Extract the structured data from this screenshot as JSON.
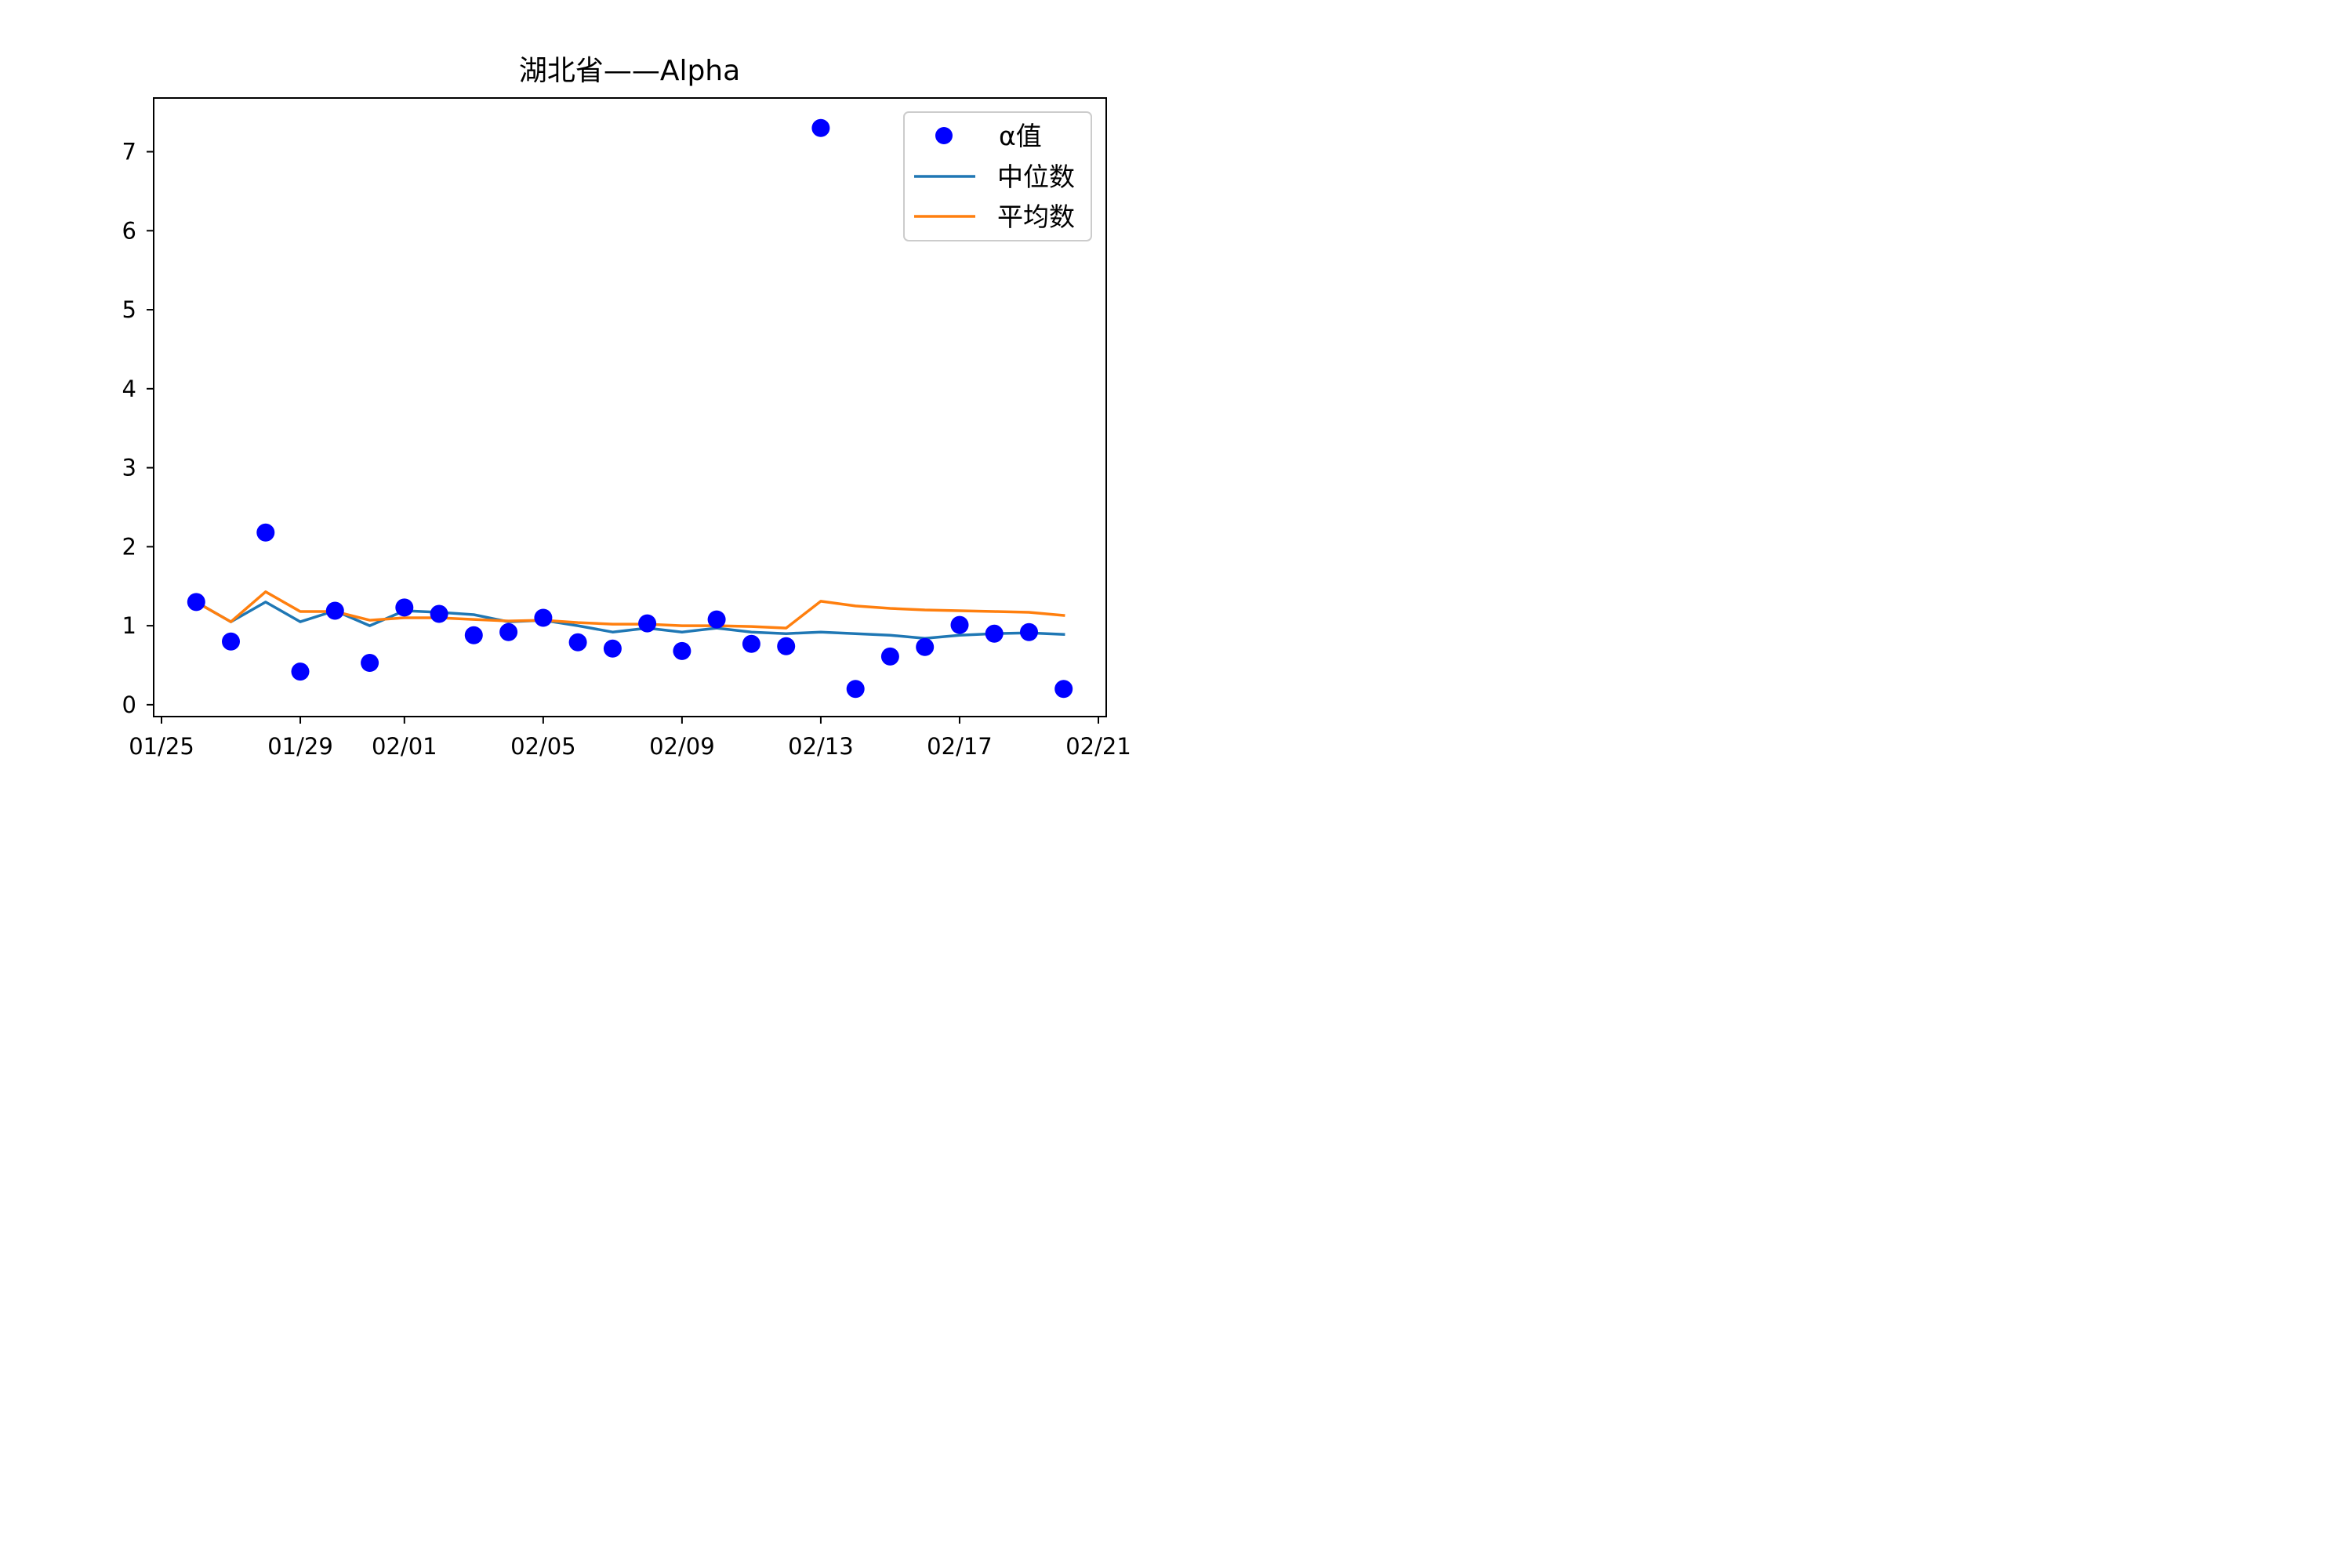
{
  "chart_data": {
    "type": "scatter",
    "title": "湖北省——Alpha",
    "xlabel": "",
    "ylabel": "",
    "x_axis_type": "date",
    "year": 2020,
    "xlim": [
      "2020-01-25",
      "2020-02-21"
    ],
    "ylim": [
      -0.15,
      7.68
    ],
    "x": [
      "2020-01-26",
      "2020-01-27",
      "2020-01-28",
      "2020-01-29",
      "2020-01-30",
      "2020-01-31",
      "2020-02-01",
      "2020-02-02",
      "2020-02-03",
      "2020-02-04",
      "2020-02-05",
      "2020-02-06",
      "2020-02-07",
      "2020-02-08",
      "2020-02-09",
      "2020-02-10",
      "2020-02-11",
      "2020-02-12",
      "2020-02-13",
      "2020-02-14",
      "2020-02-15",
      "2020-02-16",
      "2020-02-17",
      "2020-02-18",
      "2020-02-19",
      "2020-02-20"
    ],
    "x_ticks": [
      "2020-01-25",
      "2020-01-29",
      "2020-02-01",
      "2020-02-05",
      "2020-02-09",
      "2020-02-13",
      "2020-02-17",
      "2020-02-21"
    ],
    "x_tick_labels": [
      "01/25",
      "01/29",
      "02/01",
      "02/05",
      "02/09",
      "02/13",
      "02/17",
      "02/21"
    ],
    "y_ticks": [
      0,
      1,
      2,
      3,
      4,
      5,
      6,
      7
    ],
    "y_tick_labels": [
      "0",
      "1",
      "2",
      "3",
      "4",
      "5",
      "6",
      "7"
    ],
    "series": [
      {
        "name": "α值",
        "kind": "scatter",
        "color": "#0000ff",
        "values": [
          1.3,
          0.8,
          2.18,
          0.42,
          1.19,
          0.53,
          1.23,
          1.15,
          0.88,
          0.92,
          1.1,
          0.79,
          0.71,
          1.03,
          0.68,
          1.08,
          0.77,
          0.74,
          7.3,
          0.2,
          0.61,
          0.73,
          1.01,
          0.9,
          0.92,
          0.2
        ]
      },
      {
        "name": "中位数",
        "kind": "line",
        "color": "#1f77b4",
        "values": [
          1.3,
          1.05,
          1.3,
          1.05,
          1.19,
          1.0,
          1.19,
          1.17,
          1.14,
          1.05,
          1.07,
          1.0,
          0.92,
          0.97,
          0.92,
          0.97,
          0.92,
          0.9,
          0.92,
          0.9,
          0.88,
          0.84,
          0.88,
          0.9,
          0.91,
          0.89
        ]
      },
      {
        "name": "平均数",
        "kind": "line",
        "color": "#ff7f0e",
        "values": [
          1.3,
          1.05,
          1.43,
          1.18,
          1.18,
          1.07,
          1.1,
          1.1,
          1.08,
          1.06,
          1.07,
          1.04,
          1.02,
          1.02,
          1.0,
          1.0,
          0.99,
          0.97,
          1.31,
          1.25,
          1.22,
          1.2,
          1.19,
          1.18,
          1.17,
          1.13
        ]
      }
    ],
    "legend_position": "top-right",
    "grid": false
  }
}
